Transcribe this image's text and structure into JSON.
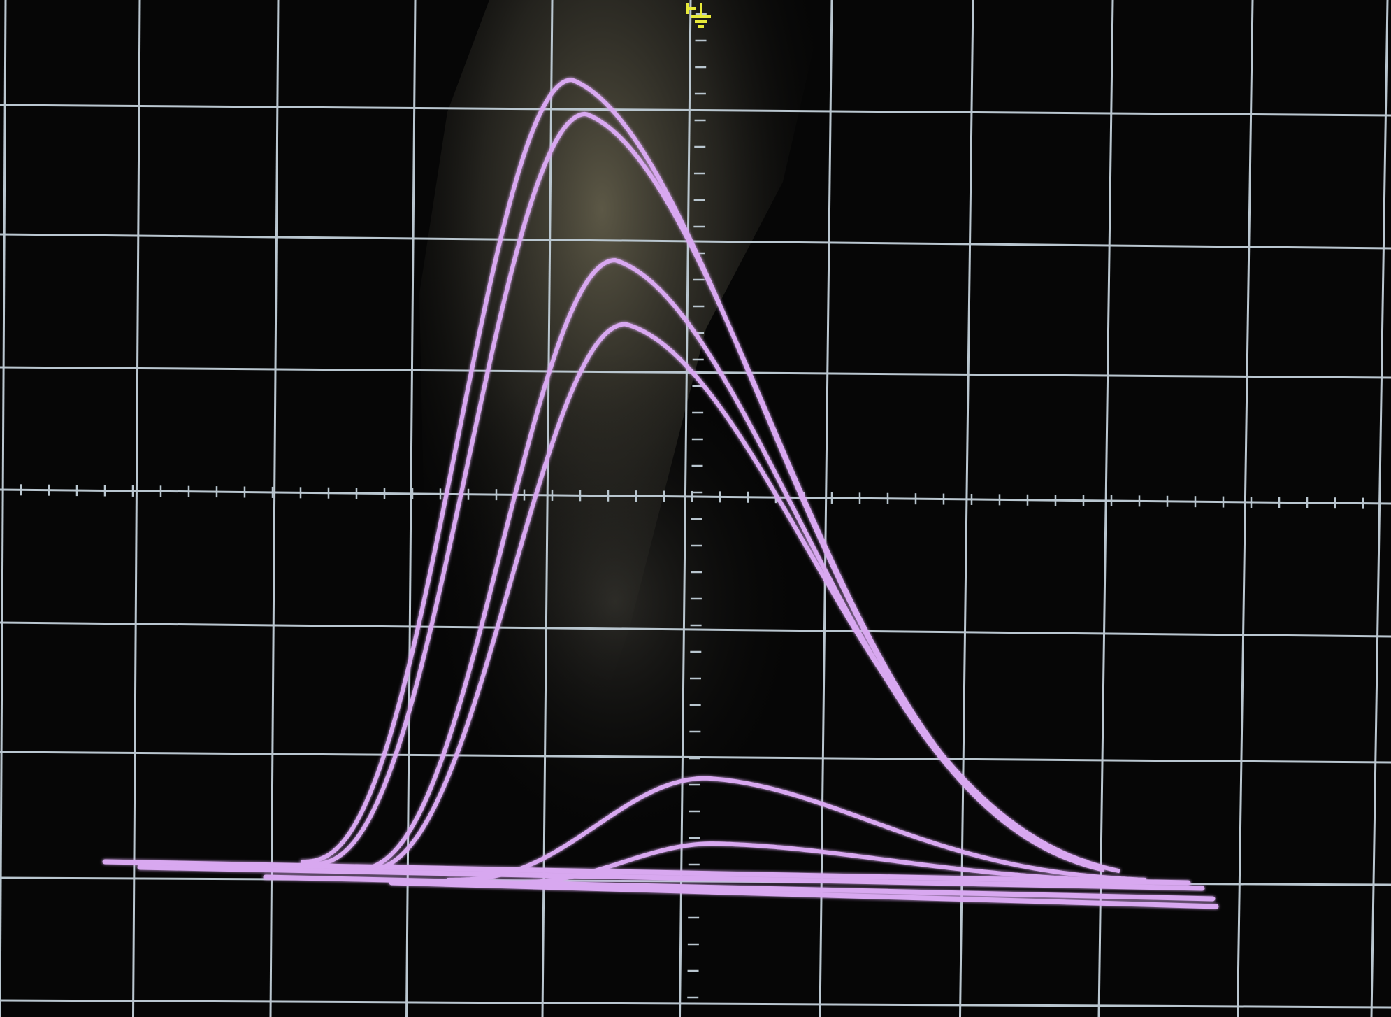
{
  "display": {
    "background": "#060606",
    "grid_color": "#b9c6cf",
    "trace_color": "#d8a8f0",
    "marker_color": "#e8ea3a",
    "ground_marker_icon": "ground-symbol-icon"
  },
  "traces": [
    {
      "name": "",
      "peak_level": 1.0
    },
    {
      "name": "",
      "peak_level": 0.96
    },
    {
      "name": "",
      "peak_level": 0.78
    },
    {
      "name": "",
      "peak_level": 0.7
    },
    {
      "name": "",
      "peak_level": 0.13
    },
    {
      "name": "",
      "peak_level": 0.05
    }
  ]
}
